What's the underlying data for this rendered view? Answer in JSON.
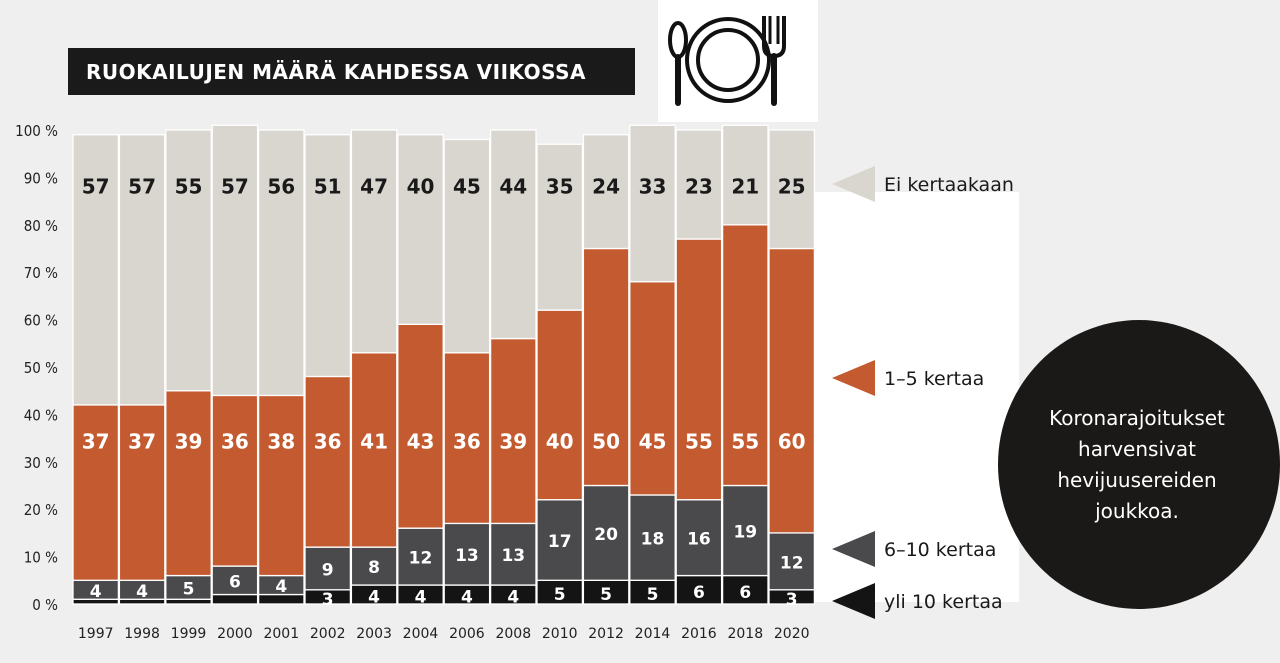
{
  "title": "RUOKAILUJEN MÄÄRÄ KAHDESSA VIIKOSSA",
  "callout_text": "Koronarajoitukset\nharvensivat\nhevijuusereiden\njoukkoa.",
  "colors": {
    "Ei kertaakaan": "#d9d6cf",
    "1–5 kertaa": "#c45a2f",
    "6–10 kertaa": "#4a4a4c",
    "yli 10 kertaa": "#141414"
  },
  "icon": "plate-fork-spoon-icon",
  "chart_data": {
    "type": "bar",
    "stacked": true,
    "title": "RUOKAILUJEN MÄÄRÄ KAHDESSA VIIKOSSA",
    "xlabel": "",
    "ylabel": "",
    "ylim": [
      0,
      100
    ],
    "ytick_labels": [
      "0 %",
      "10 %",
      "20 %",
      "30 %",
      "40 %",
      "50 %",
      "60 %",
      "70 %",
      "80 %",
      "90 %",
      "100 %"
    ],
    "categories": [
      "1997",
      "1998",
      "1999",
      "2000",
      "2001",
      "2002",
      "2003",
      "2004",
      "2006",
      "2008",
      "2010",
      "2012",
      "2014",
      "2016",
      "2018",
      "2020"
    ],
    "series": [
      {
        "name": "yli 10 kertaa",
        "values": [
          1,
          1,
          1,
          2,
          2,
          3,
          4,
          4,
          4,
          4,
          5,
          5,
          5,
          6,
          6,
          3
        ],
        "labels": [
          "",
          "",
          "",
          "",
          "",
          "3",
          "4",
          "4",
          "4",
          "4",
          "5",
          "5",
          "5",
          "6",
          "6",
          "3"
        ]
      },
      {
        "name": "6–10 kertaa",
        "values": [
          4,
          4,
          5,
          6,
          4,
          9,
          8,
          12,
          13,
          13,
          17,
          20,
          18,
          16,
          19,
          12
        ],
        "labels": [
          "4",
          "4",
          "5",
          "6",
          "4",
          "9",
          "8",
          "12",
          "13",
          "13",
          "17",
          "20",
          "18",
          "16",
          "19",
          "12"
        ]
      },
      {
        "name": "1–5 kertaa",
        "values": [
          37,
          37,
          39,
          36,
          38,
          36,
          41,
          43,
          36,
          39,
          40,
          50,
          45,
          55,
          55,
          60
        ],
        "labels": [
          "37",
          "37",
          "39",
          "36",
          "38",
          "36",
          "41",
          "43",
          "36",
          "39",
          "40",
          "50",
          "45",
          "55",
          "55",
          "60"
        ]
      },
      {
        "name": "Ei kertaakaan",
        "values": [
          57,
          57,
          55,
          57,
          56,
          51,
          47,
          40,
          45,
          44,
          35,
          24,
          33,
          23,
          21,
          25
        ],
        "labels": [
          "57",
          "57",
          "55",
          "57",
          "56",
          "51",
          "47",
          "40",
          "45",
          "44",
          "35",
          "24",
          "33",
          "23",
          "21",
          "25"
        ]
      }
    ],
    "legend": [
      "Ei kertaakaan",
      "1–5 kertaa",
      "6–10 kertaa",
      "yli 10 kertaa"
    ],
    "legend_position": "right",
    "grid": false
  }
}
